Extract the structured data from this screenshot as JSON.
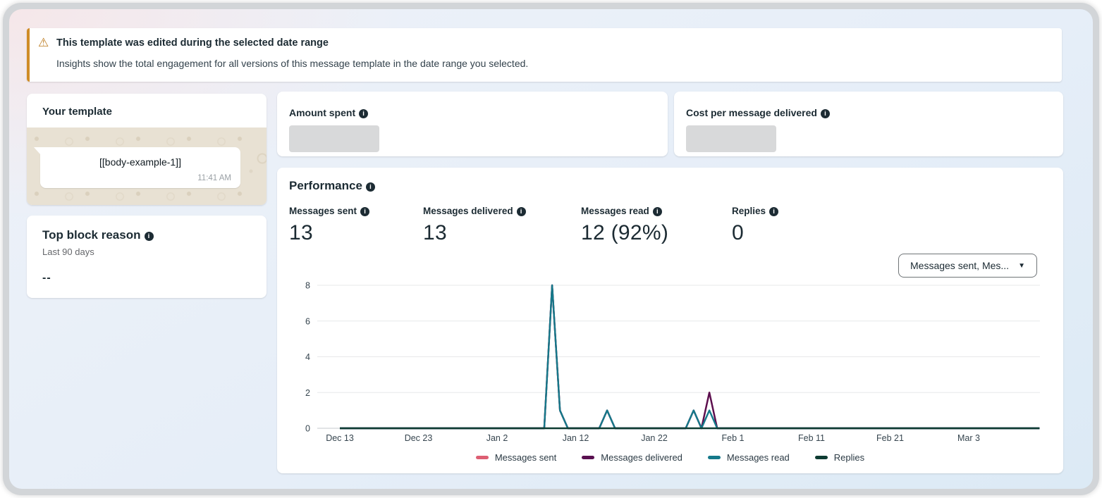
{
  "banner": {
    "title": "This template was edited during the selected date range",
    "description": "Insights show the total engagement for all versions of this message template in the date range you selected.",
    "accent_color": "#cf8c27"
  },
  "template_card": {
    "title": "Your template",
    "bubble_text": "[[body-example-1]]",
    "bubble_time": "11:41 AM"
  },
  "top_block_reason": {
    "title": "Top block reason",
    "subtitle": "Last 90 days",
    "value": "--"
  },
  "amount_spent": {
    "title": "Amount spent"
  },
  "cost_per_message": {
    "title": "Cost per message delivered"
  },
  "performance": {
    "title": "Performance",
    "metrics": [
      {
        "label": "Messages sent",
        "value": "13"
      },
      {
        "label": "Messages delivered",
        "value": "13"
      },
      {
        "label": "Messages read",
        "value": "12 (92%)"
      },
      {
        "label": "Replies",
        "value": "0"
      }
    ],
    "series_dropdown": "Messages sent, Mes..."
  },
  "chart_data": {
    "type": "line",
    "title": "",
    "xlabel": "",
    "ylabel": "",
    "grid": "horizontal",
    "legend_position": "bottom",
    "x_axis": {
      "tick_labels": [
        "Dec 13",
        "Dec 23",
        "Jan 2",
        "Jan 12",
        "Jan 22",
        "Feb 1",
        "Feb 11",
        "Feb 21",
        "Mar 3"
      ],
      "tick_day_indices": [
        0,
        10,
        20,
        30,
        40,
        50,
        60,
        70,
        80
      ],
      "total_days": 90
    },
    "y_axis": {
      "ticks": [
        0,
        2,
        4,
        6,
        8
      ],
      "range": [
        0,
        8
      ]
    },
    "baseline_note": "All days without a listed point have value 0",
    "series": [
      {
        "name": "Messages sent",
        "color": "#dd5f73",
        "total": 13,
        "nonzero_points": [
          {
            "date": "Jan 9",
            "day": 27,
            "value": 8
          },
          {
            "date": "Jan 10",
            "day": 28,
            "value": 1
          },
          {
            "date": "Jan 16",
            "day": 34,
            "value": 1
          },
          {
            "date": "Jan 27",
            "day": 45,
            "value": 1
          },
          {
            "date": "Jan 29",
            "day": 47,
            "value": 2
          }
        ]
      },
      {
        "name": "Messages delivered",
        "color": "#5a1050",
        "total": 13,
        "nonzero_points": [
          {
            "date": "Jan 9",
            "day": 27,
            "value": 8
          },
          {
            "date": "Jan 10",
            "day": 28,
            "value": 1
          },
          {
            "date": "Jan 16",
            "day": 34,
            "value": 1
          },
          {
            "date": "Jan 27",
            "day": 45,
            "value": 1
          },
          {
            "date": "Jan 29",
            "day": 47,
            "value": 2
          }
        ]
      },
      {
        "name": "Messages read",
        "color": "#15798a",
        "total": 12,
        "nonzero_points": [
          {
            "date": "Jan 9",
            "day": 27,
            "value": 8
          },
          {
            "date": "Jan 10",
            "day": 28,
            "value": 1
          },
          {
            "date": "Jan 16",
            "day": 34,
            "value": 1
          },
          {
            "date": "Jan 27",
            "day": 45,
            "value": 1
          },
          {
            "date": "Jan 29",
            "day": 47,
            "value": 1
          }
        ]
      },
      {
        "name": "Replies",
        "color": "#0e3c32",
        "total": 0,
        "nonzero_points": []
      }
    ]
  }
}
